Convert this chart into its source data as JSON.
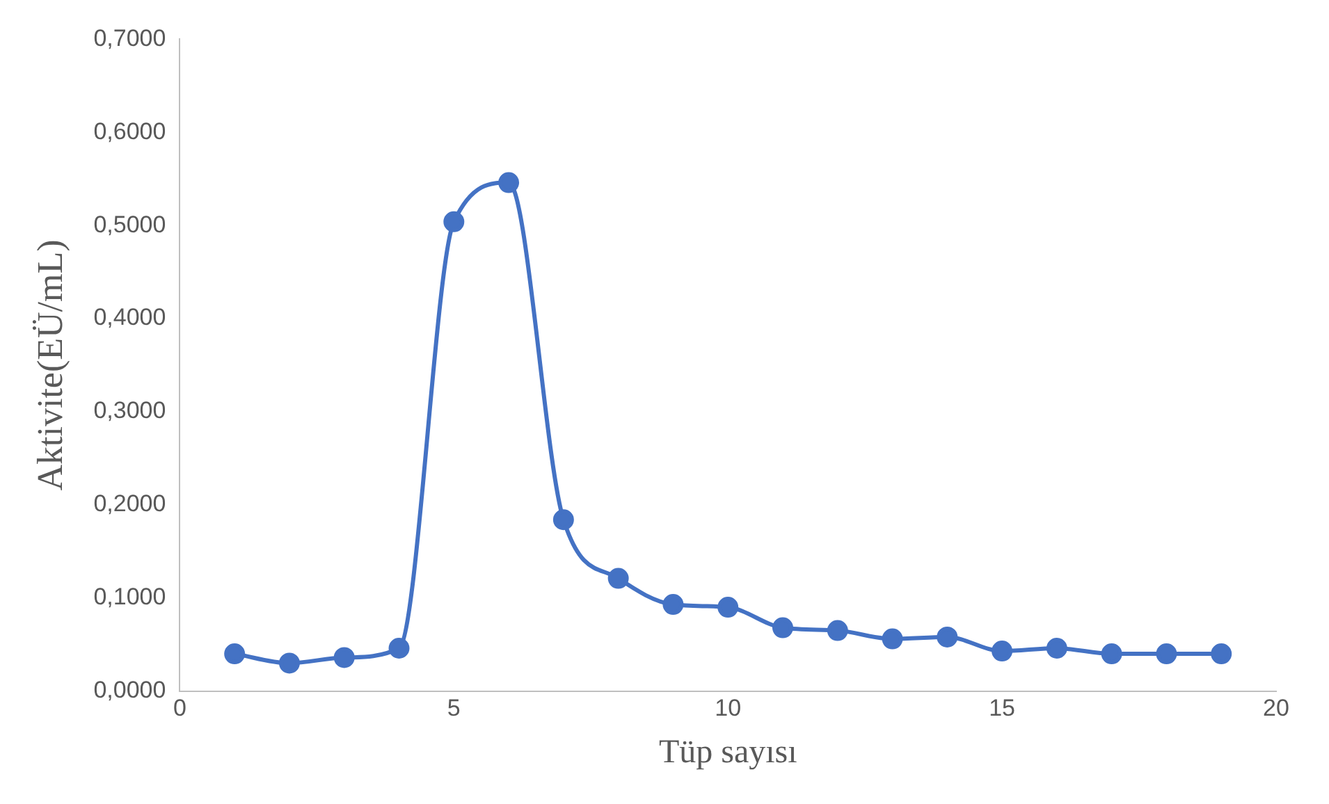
{
  "chart_data": {
    "type": "line",
    "xlabel": "Tüp sayısı",
    "ylabel": "Aktivite(EÜ/mL)",
    "x": [
      1,
      2,
      3,
      4,
      5,
      6,
      7,
      8,
      9,
      10,
      11,
      12,
      13,
      14,
      15,
      16,
      17,
      18,
      19
    ],
    "series": [
      {
        "color": "#4472c4",
        "values": [
          0.04,
          0.03,
          0.036,
          0.046,
          0.504,
          0.546,
          0.184,
          0.121,
          0.093,
          0.09,
          0.068,
          0.065,
          0.056,
          0.058,
          0.043,
          0.046,
          0.04,
          0.04,
          0.04
        ]
      }
    ],
    "xlim": [
      0,
      20
    ],
    "xticks": [
      0,
      5,
      10,
      15,
      20
    ],
    "ylim": [
      0,
      0.7
    ],
    "yticks": [
      {
        "value": 0,
        "label": "0,0000"
      },
      {
        "value": 0.1,
        "label": "0,1000"
      },
      {
        "value": 0.2,
        "label": "0,2000"
      },
      {
        "value": 0.3,
        "label": "0,3000"
      },
      {
        "value": 0.4,
        "label": "0,4000"
      },
      {
        "value": 0.5,
        "label": "0,5000"
      },
      {
        "value": 0.6,
        "label": "0,6000"
      },
      {
        "value": 0.7,
        "label": "0,7000"
      }
    ],
    "grid": false,
    "legend": false,
    "marker": "circle",
    "line_style": "solid"
  }
}
